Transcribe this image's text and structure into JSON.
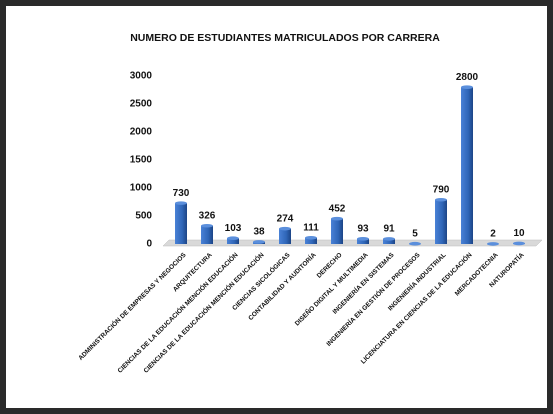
{
  "chart_data": {
    "type": "bar",
    "title": "NUMERO DE ESTUDIANTES MATRICULADOS POR CARRERA",
    "categories": [
      "ADMINISTRACIÓN DE EMPRESAS Y NEGOCIOS",
      "ARQUITECTURA",
      "CIENCIAS DE LA EDUCACIÓN MENCIÓN EDUCACIÓN",
      "CIENCIAS DE LA EDUCACIÓN MENCIÓN EDUCACIÓN",
      "CIENCIAS SICOLÓGICAS",
      "CONTABILIDAD Y AUDITORÍA",
      "DERECHO",
      "DISEÑO DIGITAL Y MULTIMEDIA",
      "INGENIERÍA EN SISTEMAS",
      "INGENIERÍA EN GESTIÓN DE PROCESOS",
      "INGENIERÍA INDUSTRIAL",
      "LICENCIATURA EN CIENCIAS DE LA EDUCACIÓN",
      "MERCADOTECNIA",
      "NATUROPATÍA"
    ],
    "values": [
      730,
      326,
      103,
      38,
      274,
      111,
      452,
      93,
      91,
      5,
      790,
      2800,
      2,
      10
    ],
    "color": "#2f66b8",
    "ylim": [
      0,
      3000
    ],
    "yticks": [
      0,
      500,
      1000,
      1500,
      2000,
      2500,
      3000
    ],
    "grid": false
  }
}
